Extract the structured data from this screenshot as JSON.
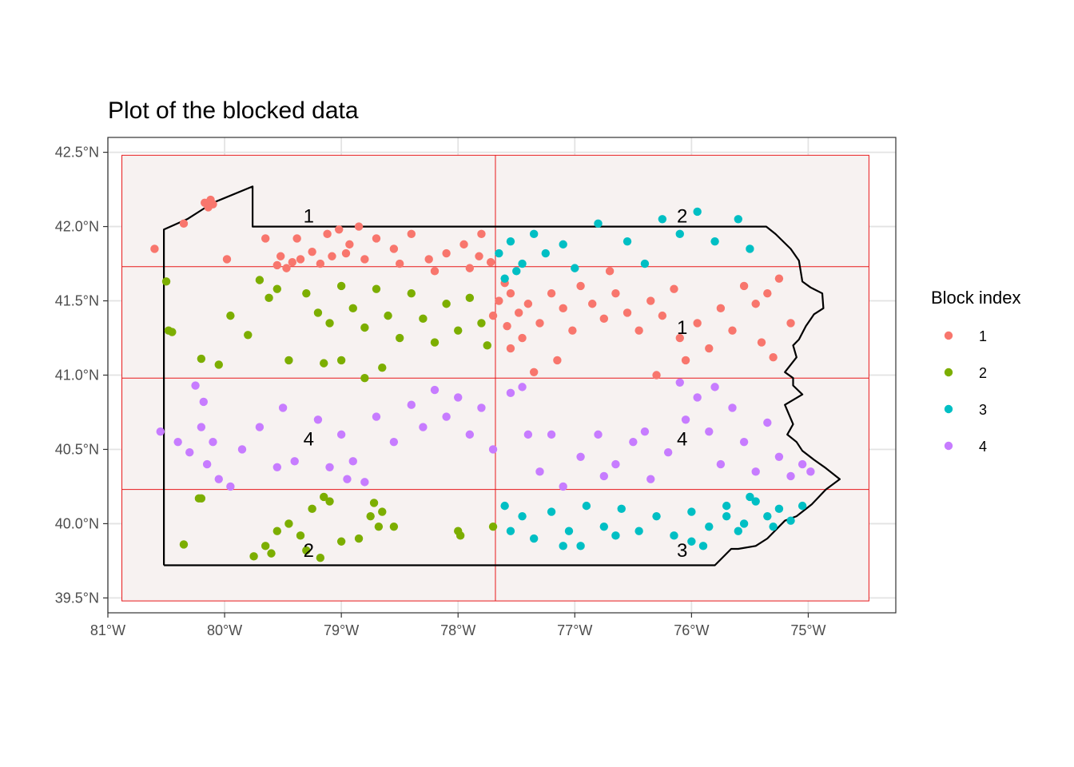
{
  "chart_data": {
    "type": "scatter",
    "title": "Plot of the blocked data",
    "xlabel": "",
    "ylabel": "",
    "xlim": [
      -81.0,
      -74.25
    ],
    "ylim": [
      39.4,
      42.6
    ],
    "x_ticks": [
      {
        "value": -81,
        "label": "81°W"
      },
      {
        "value": -80,
        "label": "80°W"
      },
      {
        "value": -79,
        "label": "79°W"
      },
      {
        "value": -78,
        "label": "78°W"
      },
      {
        "value": -77,
        "label": "77°W"
      },
      {
        "value": -76,
        "label": "76°W"
      },
      {
        "value": -75,
        "label": "75°W"
      }
    ],
    "y_ticks": [
      {
        "value": 39.5,
        "label": "39.5°N"
      },
      {
        "value": 40.0,
        "label": "40.0°N"
      },
      {
        "value": 40.5,
        "label": "40.5°N"
      },
      {
        "value": 41.0,
        "label": "41.0°N"
      },
      {
        "value": 41.5,
        "label": "41.5°N"
      },
      {
        "value": 42.0,
        "label": "42.0°N"
      },
      {
        "value": 42.5,
        "label": "42.5°N"
      }
    ],
    "grid": true,
    "legend": {
      "title": "Block index",
      "position": "right",
      "entries": [
        {
          "name": "1",
          "color": "#F8766D"
        },
        {
          "name": "2",
          "color": "#7CAE00"
        },
        {
          "name": "3",
          "color": "#00BFC4"
        },
        {
          "name": "4",
          "color": "#C77CFF"
        }
      ]
    },
    "block_grid": {
      "lon_edges": [
        -80.88,
        -77.68,
        -74.48
      ],
      "lat_edges": [
        39.48,
        40.23,
        40.98,
        41.73,
        42.48
      ],
      "line_color": "#e8191b",
      "fill_color": "#f7f2f1"
    },
    "block_labels": [
      {
        "text": "1",
        "lon": -79.28,
        "lat": 42.07
      },
      {
        "text": "2",
        "lon": -76.08,
        "lat": 42.07
      },
      {
        "text": "1",
        "lon": -76.08,
        "lat": 41.32
      },
      {
        "text": "4",
        "lon": -79.28,
        "lat": 40.57
      },
      {
        "text": "4",
        "lon": -76.08,
        "lat": 40.57
      },
      {
        "text": "2",
        "lon": -79.28,
        "lat": 39.82
      },
      {
        "text": "3",
        "lon": -76.08,
        "lat": 39.82
      }
    ],
    "boundary": [
      [
        -80.52,
        39.72
      ],
      [
        -80.52,
        41.98
      ],
      [
        -80.32,
        42.05
      ],
      [
        -80.1,
        42.16
      ],
      [
        -79.76,
        42.27
      ],
      [
        -79.76,
        42.0
      ],
      [
        -75.36,
        42.0
      ],
      [
        -75.28,
        41.95
      ],
      [
        -75.15,
        41.85
      ],
      [
        -75.08,
        41.77
      ],
      [
        -75.05,
        41.63
      ],
      [
        -74.98,
        41.59
      ],
      [
        -74.88,
        41.55
      ],
      [
        -74.87,
        41.45
      ],
      [
        -74.95,
        41.41
      ],
      [
        -75.02,
        41.33
      ],
      [
        -75.08,
        41.24
      ],
      [
        -75.13,
        41.2
      ],
      [
        -75.1,
        41.12
      ],
      [
        -75.2,
        41.02
      ],
      [
        -75.13,
        40.98
      ],
      [
        -75.13,
        40.93
      ],
      [
        -75.05,
        40.87
      ],
      [
        -75.2,
        40.8
      ],
      [
        -75.13,
        40.67
      ],
      [
        -75.18,
        40.6
      ],
      [
        -75.1,
        40.55
      ],
      [
        -75.05,
        40.49
      ],
      [
        -74.95,
        40.43
      ],
      [
        -74.86,
        40.38
      ],
      [
        -74.73,
        40.3
      ],
      [
        -74.85,
        40.23
      ],
      [
        -74.97,
        40.13
      ],
      [
        -75.1,
        40.05
      ],
      [
        -75.2,
        40.02
      ],
      [
        -75.35,
        39.9
      ],
      [
        -75.45,
        39.85
      ],
      [
        -75.6,
        39.83
      ],
      [
        -75.66,
        39.83
      ],
      [
        -75.8,
        39.72
      ],
      [
        -80.52,
        39.72
      ]
    ],
    "series": [
      {
        "name": "1",
        "color": "#F8766D",
        "points": [
          [
            -80.6,
            41.85
          ],
          [
            -80.35,
            42.02
          ],
          [
            -80.1,
            42.15
          ],
          [
            -80.14,
            42.13
          ],
          [
            -80.17,
            42.16
          ],
          [
            -80.12,
            42.18
          ],
          [
            -79.98,
            41.78
          ],
          [
            -79.65,
            41.92
          ],
          [
            -79.52,
            41.8
          ],
          [
            -79.38,
            41.92
          ],
          [
            -79.47,
            41.72
          ],
          [
            -79.42,
            41.76
          ],
          [
            -79.55,
            41.74
          ],
          [
            -79.35,
            41.78
          ],
          [
            -79.25,
            41.83
          ],
          [
            -79.12,
            41.95
          ],
          [
            -79.02,
            41.98
          ],
          [
            -78.93,
            41.88
          ],
          [
            -78.85,
            42.0
          ],
          [
            -79.08,
            41.8
          ],
          [
            -78.96,
            41.82
          ],
          [
            -79.18,
            41.75
          ],
          [
            -78.7,
            41.92
          ],
          [
            -78.55,
            41.85
          ],
          [
            -78.4,
            41.95
          ],
          [
            -78.25,
            41.78
          ],
          [
            -78.1,
            41.82
          ],
          [
            -77.95,
            41.88
          ],
          [
            -77.82,
            41.8
          ],
          [
            -77.72,
            41.76
          ],
          [
            -77.6,
            41.62
          ],
          [
            -77.65,
            41.5
          ],
          [
            -77.7,
            41.4
          ],
          [
            -77.55,
            41.55
          ],
          [
            -77.48,
            41.42
          ],
          [
            -77.58,
            41.33
          ],
          [
            -77.45,
            41.25
          ],
          [
            -77.4,
            41.48
          ],
          [
            -77.3,
            41.35
          ],
          [
            -77.2,
            41.55
          ],
          [
            -77.1,
            41.45
          ],
          [
            -77.02,
            41.3
          ],
          [
            -76.95,
            41.6
          ],
          [
            -76.85,
            41.48
          ],
          [
            -76.75,
            41.38
          ],
          [
            -76.65,
            41.55
          ],
          [
            -76.55,
            41.42
          ],
          [
            -76.45,
            41.3
          ],
          [
            -76.35,
            41.5
          ],
          [
            -76.25,
            41.4
          ],
          [
            -76.15,
            41.58
          ],
          [
            -76.1,
            41.25
          ],
          [
            -75.95,
            41.35
          ],
          [
            -75.85,
            41.18
          ],
          [
            -75.75,
            41.45
          ],
          [
            -75.65,
            41.3
          ],
          [
            -75.55,
            41.6
          ],
          [
            -75.45,
            41.48
          ],
          [
            -75.35,
            41.55
          ],
          [
            -75.4,
            41.22
          ],
          [
            -75.3,
            41.12
          ],
          [
            -75.15,
            41.35
          ],
          [
            -75.25,
            41.65
          ],
          [
            -76.05,
            41.1
          ],
          [
            -76.3,
            41.0
          ],
          [
            -77.15,
            41.1
          ],
          [
            -77.35,
            41.02
          ],
          [
            -77.55,
            41.18
          ],
          [
            -78.2,
            41.7
          ],
          [
            -78.5,
            41.75
          ],
          [
            -77.9,
            41.72
          ],
          [
            -76.7,
            41.7
          ],
          [
            -77.8,
            41.95
          ],
          [
            -78.8,
            41.78
          ]
        ]
      },
      {
        "name": "2",
        "color": "#7CAE00",
        "points": [
          [
            -80.5,
            41.63
          ],
          [
            -80.48,
            41.3
          ],
          [
            -80.45,
            41.29
          ],
          [
            -80.2,
            41.11
          ],
          [
            -80.05,
            41.07
          ],
          [
            -79.95,
            41.4
          ],
          [
            -79.8,
            41.27
          ],
          [
            -79.7,
            41.64
          ],
          [
            -79.62,
            41.52
          ],
          [
            -79.55,
            41.58
          ],
          [
            -79.45,
            41.1
          ],
          [
            -79.3,
            41.55
          ],
          [
            -79.2,
            41.42
          ],
          [
            -79.1,
            41.35
          ],
          [
            -79.0,
            41.6
          ],
          [
            -78.9,
            41.45
          ],
          [
            -78.8,
            41.32
          ],
          [
            -78.7,
            41.58
          ],
          [
            -78.6,
            41.4
          ],
          [
            -78.5,
            41.25
          ],
          [
            -78.4,
            41.55
          ],
          [
            -78.3,
            41.38
          ],
          [
            -78.2,
            41.22
          ],
          [
            -78.1,
            41.48
          ],
          [
            -78.0,
            41.3
          ],
          [
            -77.9,
            41.52
          ],
          [
            -77.8,
            41.35
          ],
          [
            -77.75,
            41.2
          ],
          [
            -78.65,
            41.05
          ],
          [
            -78.8,
            40.98
          ],
          [
            -79.15,
            41.08
          ],
          [
            -79.0,
            41.1
          ],
          [
            -80.35,
            39.86
          ],
          [
            -80.22,
            40.17
          ],
          [
            -80.2,
            40.17
          ],
          [
            -79.75,
            39.78
          ],
          [
            -79.65,
            39.85
          ],
          [
            -79.55,
            39.95
          ],
          [
            -79.45,
            40.0
          ],
          [
            -79.35,
            39.92
          ],
          [
            -79.25,
            40.1
          ],
          [
            -79.15,
            40.18
          ],
          [
            -79.1,
            40.15
          ],
          [
            -79.0,
            39.88
          ],
          [
            -78.85,
            39.9
          ],
          [
            -78.75,
            40.05
          ],
          [
            -78.65,
            40.08
          ],
          [
            -78.55,
            39.98
          ],
          [
            -78.0,
            39.95
          ],
          [
            -77.98,
            39.92
          ],
          [
            -77.7,
            39.98
          ],
          [
            -79.6,
            39.8
          ],
          [
            -79.3,
            39.82
          ],
          [
            -79.18,
            39.77
          ],
          [
            -78.72,
            40.14
          ],
          [
            -78.68,
            39.98
          ]
        ]
      },
      {
        "name": "3",
        "color": "#00BFC4",
        "points": [
          [
            -77.65,
            41.82
          ],
          [
            -77.55,
            41.9
          ],
          [
            -77.45,
            41.75
          ],
          [
            -77.35,
            41.95
          ],
          [
            -77.25,
            41.82
          ],
          [
            -77.1,
            41.88
          ],
          [
            -77.0,
            41.72
          ],
          [
            -76.8,
            42.02
          ],
          [
            -76.55,
            41.9
          ],
          [
            -76.4,
            41.75
          ],
          [
            -76.25,
            42.05
          ],
          [
            -76.1,
            41.95
          ],
          [
            -75.95,
            42.1
          ],
          [
            -75.8,
            41.9
          ],
          [
            -75.6,
            42.05
          ],
          [
            -75.5,
            41.85
          ],
          [
            -77.6,
            41.65
          ],
          [
            -77.5,
            41.7
          ],
          [
            -77.6,
            40.12
          ],
          [
            -77.55,
            39.95
          ],
          [
            -77.45,
            40.05
          ],
          [
            -77.35,
            39.9
          ],
          [
            -77.2,
            40.08
          ],
          [
            -77.05,
            39.95
          ],
          [
            -76.9,
            40.12
          ],
          [
            -76.75,
            39.98
          ],
          [
            -76.6,
            40.1
          ],
          [
            -76.45,
            39.95
          ],
          [
            -76.3,
            40.05
          ],
          [
            -76.15,
            39.92
          ],
          [
            -76.0,
            40.08
          ],
          [
            -75.85,
            39.98
          ],
          [
            -75.7,
            40.12
          ],
          [
            -75.55,
            40.0
          ],
          [
            -75.45,
            40.15
          ],
          [
            -75.35,
            40.05
          ],
          [
            -75.25,
            40.1
          ],
          [
            -75.15,
            40.02
          ],
          [
            -75.05,
            40.12
          ],
          [
            -76.0,
            39.88
          ],
          [
            -75.9,
            39.85
          ],
          [
            -77.1,
            39.85
          ],
          [
            -76.95,
            39.85
          ],
          [
            -76.65,
            39.92
          ],
          [
            -75.6,
            39.95
          ],
          [
            -75.7,
            40.05
          ],
          [
            -75.5,
            40.18
          ],
          [
            -75.3,
            39.98
          ]
        ]
      },
      {
        "name": "4",
        "color": "#C77CFF",
        "points": [
          [
            -80.55,
            40.62
          ],
          [
            -80.4,
            40.55
          ],
          [
            -80.3,
            40.48
          ],
          [
            -80.2,
            40.65
          ],
          [
            -80.15,
            40.4
          ],
          [
            -80.1,
            40.55
          ],
          [
            -80.05,
            40.3
          ],
          [
            -79.95,
            40.25
          ],
          [
            -79.85,
            40.5
          ],
          [
            -79.7,
            40.65
          ],
          [
            -79.55,
            40.38
          ],
          [
            -79.5,
            40.78
          ],
          [
            -79.2,
            40.7
          ],
          [
            -79.1,
            40.38
          ],
          [
            -79.0,
            40.6
          ],
          [
            -78.9,
            40.42
          ],
          [
            -78.8,
            40.28
          ],
          [
            -78.7,
            40.72
          ],
          [
            -78.55,
            40.55
          ],
          [
            -78.4,
            40.8
          ],
          [
            -78.3,
            40.65
          ],
          [
            -78.2,
            40.9
          ],
          [
            -78.1,
            40.72
          ],
          [
            -78.0,
            40.85
          ],
          [
            -77.9,
            40.6
          ],
          [
            -77.8,
            40.78
          ],
          [
            -77.7,
            40.5
          ],
          [
            -77.55,
            40.88
          ],
          [
            -77.45,
            40.92
          ],
          [
            -77.4,
            40.6
          ],
          [
            -77.3,
            40.35
          ],
          [
            -77.1,
            40.25
          ],
          [
            -76.95,
            40.45
          ],
          [
            -76.8,
            40.6
          ],
          [
            -76.65,
            40.4
          ],
          [
            -76.5,
            40.55
          ],
          [
            -76.35,
            40.3
          ],
          [
            -76.2,
            40.48
          ],
          [
            -76.05,
            40.7
          ],
          [
            -75.95,
            40.85
          ],
          [
            -75.85,
            40.62
          ],
          [
            -75.75,
            40.4
          ],
          [
            -75.65,
            40.78
          ],
          [
            -75.55,
            40.55
          ],
          [
            -75.45,
            40.35
          ],
          [
            -75.35,
            40.68
          ],
          [
            -75.25,
            40.45
          ],
          [
            -75.15,
            40.32
          ],
          [
            -75.05,
            40.4
          ],
          [
            -74.98,
            40.35
          ],
          [
            -76.1,
            40.95
          ],
          [
            -75.8,
            40.92
          ],
          [
            -80.25,
            40.93
          ],
          [
            -80.18,
            40.82
          ],
          [
            -79.4,
            40.42
          ],
          [
            -78.95,
            40.3
          ],
          [
            -76.4,
            40.62
          ],
          [
            -76.75,
            40.32
          ],
          [
            -77.2,
            40.6
          ]
        ]
      }
    ]
  }
}
